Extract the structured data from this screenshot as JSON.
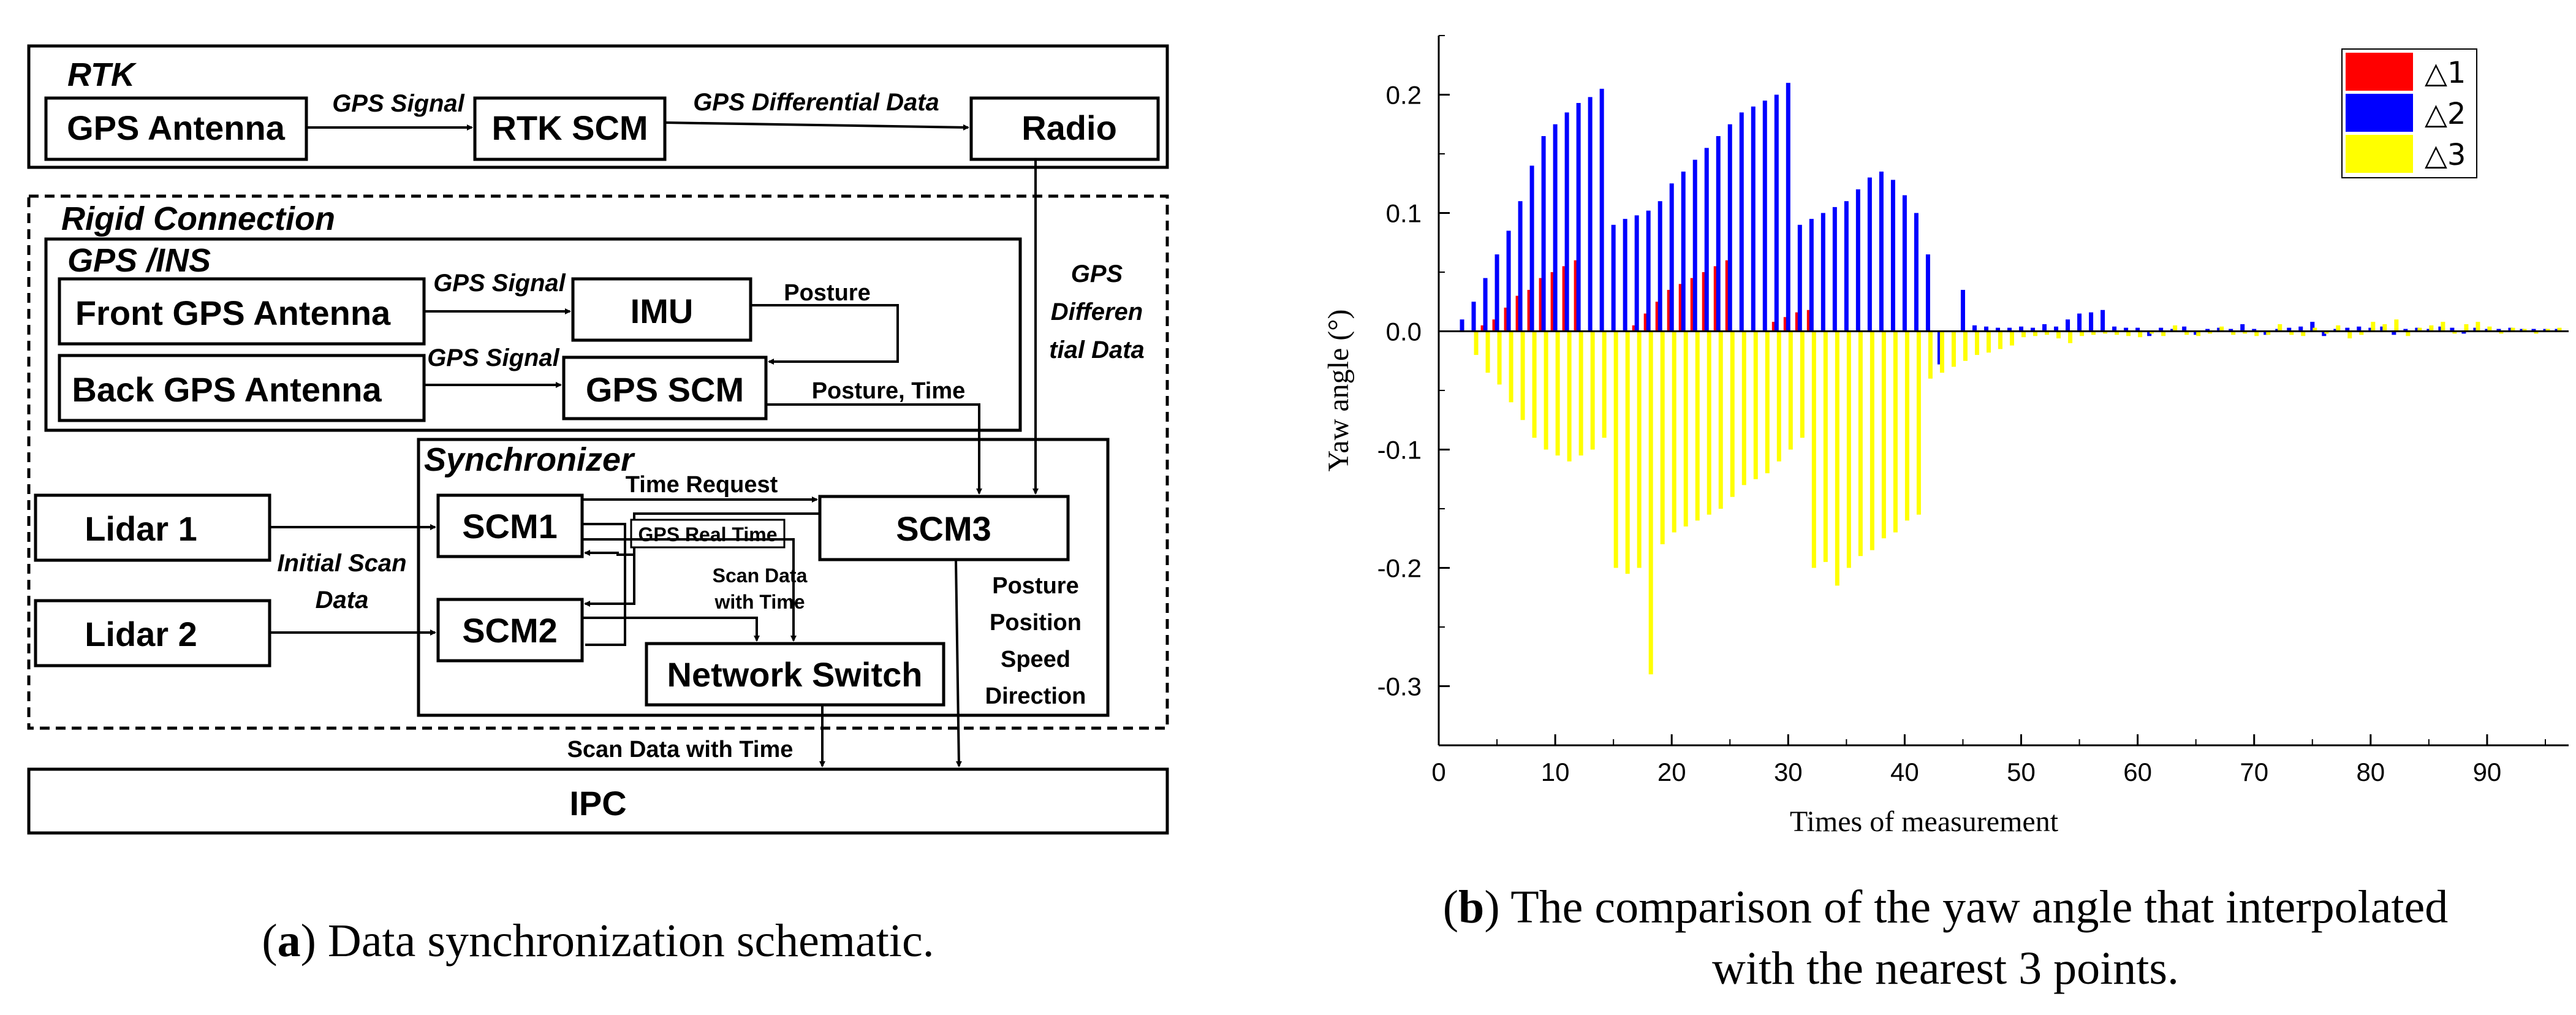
{
  "panel_a": {
    "rtk": {
      "title": "RTK",
      "gps_antenna": "GPS Antenna",
      "rtk_scm": "RTK SCM",
      "radio": "Radio",
      "gps_signal_label": "GPS Signal",
      "differential_label": "GPS Differential Data"
    },
    "rigid": {
      "title": "Rigid Connection",
      "gps_differential_label_1": "GPS",
      "gps_differential_label_2": "Differen",
      "gps_differential_label_3": "tial Data"
    },
    "gps_ins": {
      "title": "GPS /INS",
      "front_antenna": "Front GPS Antenna",
      "back_antenna": "Back GPS Antenna",
      "imu": "IMU",
      "gps_scm": "GPS SCM",
      "gps_signal_front": "GPS Signal",
      "gps_signal_back": "GPS Signal",
      "posture": "Posture",
      "posture_time": "Posture, Time"
    },
    "synchronizer": {
      "title": "Synchronizer",
      "scm1": "SCM1",
      "scm2": "SCM2",
      "scm3": "SCM3",
      "network_switch": "Network Switch",
      "time_request": "Time Request",
      "gps_real_time": "GPS Real Time",
      "scan_data_with_time_1": "Scan Data",
      "scan_data_with_time_2": "with Time",
      "pos_1": "Posture",
      "pos_2": "Position",
      "pos_3": "Speed",
      "pos_4": "Direction"
    },
    "lidar1": "Lidar 1",
    "lidar2": "Lidar 2",
    "initial_scan_1": "Initial Scan",
    "initial_scan_2": "Data",
    "scan_data_ipc": "Scan Data with Time",
    "ipc": "IPC",
    "caption_letter": "a",
    "caption_text": ") Data synchronization schematic.",
    "caption_open": "("
  },
  "panel_b": {
    "caption_open": "(",
    "caption_letter": "b",
    "caption_line1": ") The comparison of the yaw angle that interpolated",
    "caption_line2": "with the nearest 3 points."
  },
  "chart_data": {
    "type": "bar",
    "xlabel": "Times of measurement",
    "ylabel": "Yaw angle (°)",
    "xlim": [
      0,
      97
    ],
    "ylim": [
      -0.35,
      0.25
    ],
    "xticks": [
      0,
      10,
      20,
      30,
      40,
      50,
      60,
      70,
      80,
      90
    ],
    "yticks": [
      0.2,
      0.1,
      0.0,
      -0.1,
      -0.2,
      -0.3
    ],
    "ytick_labels": [
      "0.2",
      "0.1",
      "0.0",
      "-0.1",
      "-0.2",
      "-0.3"
    ],
    "legend": [
      "△1",
      "△2",
      "△3"
    ],
    "colors": [
      "#ff0000",
      "#0000ff",
      "#ffff00"
    ],
    "series": [
      {
        "name": "△1",
        "color": "#ff0000",
        "x": [
          4,
          5,
          6,
          7,
          8,
          9,
          10,
          11,
          12,
          17,
          18,
          19,
          20,
          21,
          22,
          23,
          24,
          25,
          29,
          30,
          31,
          32
        ],
        "values": [
          0.005,
          0.01,
          0.02,
          0.03,
          0.035,
          0.045,
          0.05,
          0.055,
          0.06,
          0.005,
          0.015,
          0.025,
          0.035,
          0.04,
          0.045,
          0.05,
          0.055,
          0.06,
          0.008,
          0.012,
          0.016,
          0.018
        ]
      },
      {
        "name": "△2",
        "color": "#0000ff",
        "x": [
          2,
          3,
          4,
          5,
          6,
          7,
          8,
          9,
          10,
          11,
          12,
          13,
          14,
          15,
          16,
          17,
          18,
          19,
          20,
          21,
          22,
          23,
          24,
          25,
          26,
          27,
          28,
          29,
          30,
          31,
          32,
          33,
          34,
          35,
          36,
          37,
          38,
          39,
          40,
          41,
          42,
          43,
          45,
          46,
          47,
          48,
          49,
          50,
          51,
          52,
          53,
          54,
          55,
          56,
          57,
          58,
          59,
          60,
          61,
          62,
          63,
          64,
          65,
          66,
          67,
          68,
          69,
          70,
          71,
          72,
          73,
          74,
          75,
          76,
          77,
          78,
          79,
          80,
          81,
          82,
          83,
          84,
          85,
          86,
          87,
          88,
          89,
          90,
          91,
          92,
          93,
          94,
          95,
          96
        ],
        "values": [
          0.01,
          0.025,
          0.045,
          0.065,
          0.085,
          0.11,
          0.14,
          0.165,
          0.175,
          0.185,
          0.193,
          0.198,
          0.205,
          0.09,
          0.095,
          0.098,
          0.102,
          0.11,
          0.125,
          0.135,
          0.145,
          0.155,
          0.165,
          0.175,
          0.185,
          0.19,
          0.195,
          0.2,
          0.21,
          0.09,
          0.095,
          0.1,
          0.105,
          0.11,
          0.12,
          0.13,
          0.135,
          0.128,
          0.115,
          0.1,
          0.065,
          -0.028,
          0.035,
          0.005,
          0.004,
          0.003,
          0.003,
          0.004,
          0.003,
          0.006,
          0.004,
          0.01,
          0.015,
          0.016,
          0.018,
          0.004,
          0.003,
          0.003,
          -0.004,
          0.003,
          0.002,
          0.004,
          -0.003,
          0.002,
          0.003,
          0.002,
          0.006,
          0.002,
          -0.003,
          0.002,
          0.003,
          0.004,
          0.008,
          -0.004,
          0.002,
          0.003,
          0.004,
          0.003,
          0.004,
          -0.003,
          0.002,
          0.003,
          0.002,
          0.004,
          0.003,
          -0.002,
          0.003,
          0.002,
          0.002,
          0.003,
          0.002,
          0.002,
          0.002,
          0.002
        ]
      },
      {
        "name": "△3",
        "color": "#ffff00",
        "x": [
          3,
          4,
          5,
          6,
          7,
          8,
          9,
          10,
          11,
          12,
          13,
          14,
          15,
          16,
          17,
          18,
          19,
          20,
          21,
          22,
          23,
          24,
          25,
          26,
          27,
          28,
          29,
          30,
          31,
          32,
          33,
          34,
          35,
          36,
          37,
          38,
          39,
          40,
          41,
          42,
          43,
          44,
          45,
          46,
          47,
          48,
          49,
          50,
          51,
          52,
          53,
          54,
          55,
          56,
          57,
          58,
          59,
          60,
          61,
          62,
          63,
          64,
          65,
          66,
          67,
          68,
          69,
          70,
          71,
          72,
          73,
          74,
          75,
          76,
          77,
          78,
          79,
          80,
          81,
          82,
          83,
          84,
          85,
          86,
          87,
          88,
          89,
          90,
          91,
          92,
          93,
          94,
          95,
          96
        ],
        "values": [
          -0.02,
          -0.035,
          -0.045,
          -0.06,
          -0.075,
          -0.09,
          -0.1,
          -0.105,
          -0.11,
          -0.105,
          -0.1,
          -0.09,
          -0.2,
          -0.205,
          -0.2,
          -0.29,
          -0.18,
          -0.17,
          -0.165,
          -0.16,
          -0.155,
          -0.15,
          -0.14,
          -0.13,
          -0.125,
          -0.12,
          -0.11,
          -0.1,
          -0.09,
          -0.2,
          -0.195,
          -0.215,
          -0.2,
          -0.19,
          -0.185,
          -0.175,
          -0.17,
          -0.16,
          -0.155,
          -0.04,
          -0.035,
          -0.03,
          -0.025,
          -0.02,
          -0.018,
          -0.015,
          -0.012,
          -0.005,
          -0.004,
          -0.003,
          -0.006,
          -0.01,
          -0.004,
          -0.003,
          -0.002,
          -0.003,
          -0.004,
          -0.005,
          -0.002,
          -0.004,
          0.005,
          -0.003,
          -0.004,
          -0.002,
          0.004,
          -0.003,
          -0.002,
          -0.004,
          -0.003,
          0.006,
          -0.003,
          -0.004,
          0.003,
          -0.002,
          0.005,
          -0.006,
          -0.003,
          0.008,
          0.006,
          0.01,
          -0.004,
          0.003,
          0.005,
          0.008,
          -0.002,
          0.006,
          0.008,
          0.004,
          -0.002,
          0.003,
          0.002,
          -0.002,
          0.002,
          0.003
        ]
      }
    ]
  }
}
